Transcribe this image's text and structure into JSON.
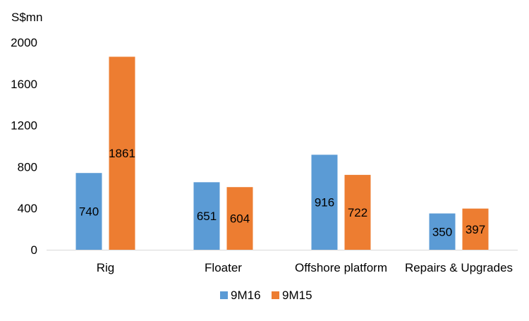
{
  "chart_data": {
    "type": "bar",
    "unit_label": "S$mn",
    "categories": [
      "Rig",
      "Floater",
      "Offshore platform",
      "Repairs & Upgrades"
    ],
    "series": [
      {
        "name": "9M16",
        "values": [
          740,
          651,
          916,
          350
        ],
        "color": "#5B9BD5"
      },
      {
        "name": "9M15",
        "values": [
          1861,
          604,
          722,
          397
        ],
        "color": "#ED7D31"
      }
    ],
    "y_ticks": [
      0,
      400,
      800,
      1200,
      1600,
      2000
    ],
    "ylim": [
      0,
      2000
    ],
    "grid": false,
    "legend_position": "bottom",
    "data_labels": true
  }
}
